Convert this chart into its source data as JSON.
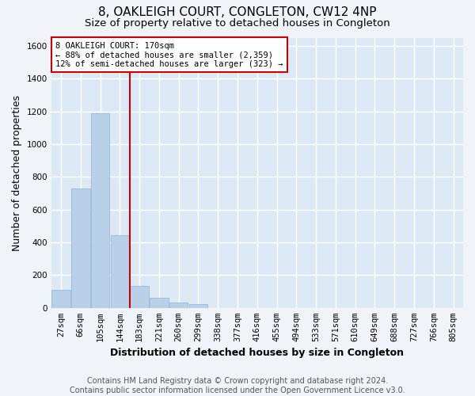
{
  "title": "8, OAKLEIGH COURT, CONGLETON, CW12 4NP",
  "subtitle": "Size of property relative to detached houses in Congleton",
  "xlabel": "Distribution of detached houses by size in Congleton",
  "ylabel": "Number of detached properties",
  "footer_line1": "Contains HM Land Registry data © Crown copyright and database right 2024.",
  "footer_line2": "Contains public sector information licensed under the Open Government Licence v3.0.",
  "categories": [
    "27sqm",
    "66sqm",
    "105sqm",
    "144sqm",
    "183sqm",
    "221sqm",
    "260sqm",
    "299sqm",
    "338sqm",
    "377sqm",
    "416sqm",
    "455sqm",
    "494sqm",
    "533sqm",
    "571sqm",
    "610sqm",
    "649sqm",
    "688sqm",
    "727sqm",
    "766sqm",
    "805sqm"
  ],
  "values": [
    110,
    730,
    1190,
    445,
    135,
    60,
    35,
    25,
    0,
    0,
    0,
    0,
    0,
    0,
    0,
    0,
    0,
    0,
    0,
    0,
    0
  ],
  "bar_color": "#b8d0e8",
  "bar_edge_color": "#9ab8d8",
  "background_color": "#dce9f5",
  "grid_color": "#ffffff",
  "fig_background": "#f0f4f8",
  "vline_color": "#cc0000",
  "annotation_line1": "8 OAKLEIGH COURT: 170sqm",
  "annotation_line2": "← 88% of detached houses are smaller (2,359)",
  "annotation_line3": "12% of semi-detached houses are larger (323) →",
  "annotation_box_color": "#cc0000",
  "ylim": [
    0,
    1650
  ],
  "yticks": [
    0,
    200,
    400,
    600,
    800,
    1000,
    1200,
    1400,
    1600
  ],
  "title_fontsize": 11,
  "subtitle_fontsize": 9.5,
  "label_fontsize": 9,
  "tick_fontsize": 7.5,
  "annot_fontsize": 7.5,
  "footer_fontsize": 7
}
